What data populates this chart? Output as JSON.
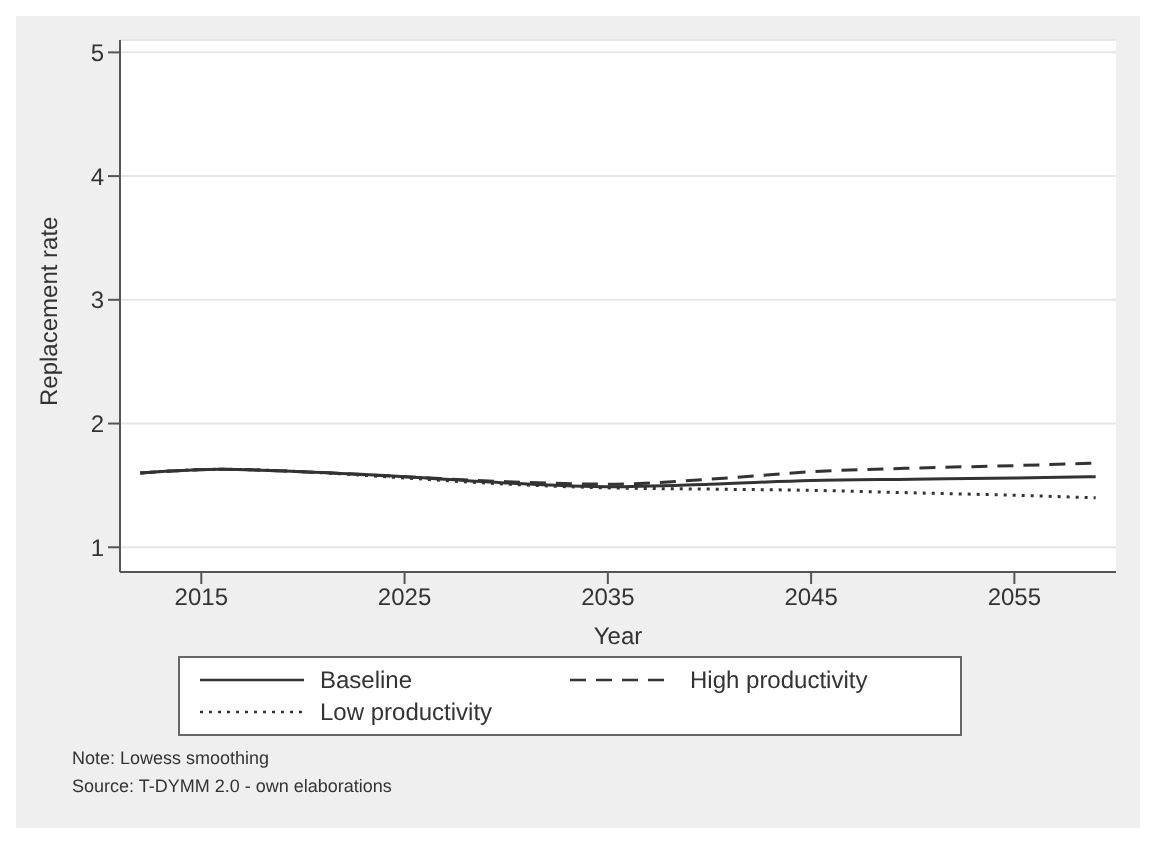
{
  "chart_data": {
    "type": "line",
    "xlabel": "Year",
    "ylabel": "Replacement rate",
    "x": [
      2012,
      2016,
      2020,
      2025,
      2030,
      2035,
      2040,
      2045,
      2050,
      2055,
      2059
    ],
    "series": [
      {
        "name": "Baseline",
        "color": "#333333",
        "line_style": "solid",
        "values": [
          1.6,
          1.63,
          1.61,
          1.57,
          1.52,
          1.49,
          1.51,
          1.54,
          1.55,
          1.56,
          1.57
        ]
      },
      {
        "name": "High productivity",
        "color": "#333333",
        "line_style": "dashed",
        "values": [
          1.6,
          1.63,
          1.61,
          1.57,
          1.53,
          1.51,
          1.55,
          1.61,
          1.64,
          1.66,
          1.68
        ]
      },
      {
        "name": "Low productivity",
        "color": "#333333",
        "line_style": "dotted",
        "values": [
          1.6,
          1.63,
          1.61,
          1.56,
          1.51,
          1.48,
          1.47,
          1.46,
          1.44,
          1.42,
          1.4
        ]
      }
    ],
    "xlim": [
      2011,
      2060
    ],
    "xticks": [
      2015,
      2025,
      2035,
      2045,
      2055
    ],
    "ylim": [
      0.8,
      5.1
    ],
    "yticks": [
      1,
      2,
      3,
      4,
      5
    ],
    "grid": "y",
    "legend": "bottom",
    "marker": "none",
    "annotations": [
      "Note: Lowess smoothing",
      "Source: T-DYMM 2.0 - own elaborations"
    ]
  }
}
